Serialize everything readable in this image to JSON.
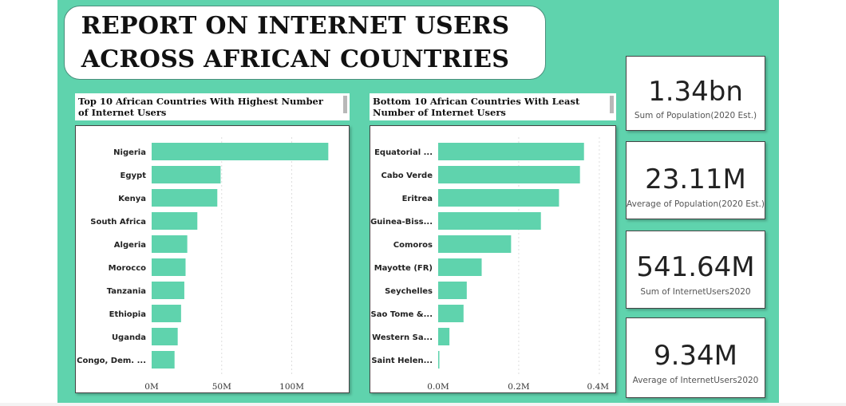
{
  "title": "REPORT ON INTERNET USERS\nACROSS AFRICAN COUNTRIES",
  "kpis": [
    {
      "value": "1.34bn",
      "label": "Sum of Population(2020 Est.)"
    },
    {
      "value": "23.11M",
      "label": "Average of Population(2020 Est.)"
    },
    {
      "value": "541.64M",
      "label": "Sum of InternetUsers2020"
    },
    {
      "value": "9.34M",
      "label": "Average of InternetUsers2020"
    }
  ],
  "colors": {
    "bar": "#5fd3ad",
    "background": "#5fd3ad"
  },
  "chart_data": [
    {
      "type": "bar",
      "orientation": "horizontal",
      "title": "Top 10 African Countries With Highest Number of Internet Users",
      "categories": [
        "Nigeria",
        "Egypt",
        "Kenya",
        "South Africa",
        "Algeria",
        "Morocco",
        "Tanzania",
        "Ethiopia",
        "Uganda",
        "Congo, Dem. ..."
      ],
      "values": [
        126.08,
        49.23,
        46.87,
        32.62,
        25.43,
        24.21,
        23.32,
        21.0,
        18.6,
        16.35
      ],
      "x_ticks": [
        0,
        50,
        100
      ],
      "x_tick_labels": [
        "0M",
        "50M",
        "100M"
      ],
      "xlim": [
        0,
        135
      ],
      "grid": true
    },
    {
      "type": "bar",
      "orientation": "horizontal",
      "title": "Bottom 10 African Countries With Least Number of Internet Users",
      "categories": [
        "Equatorial ...",
        "Cabo Verde",
        "Eritrea",
        "Guinea-Biss...",
        "Comoros",
        "Mayotte (FR)",
        "Seychelles",
        "Sao Tome &...",
        "Western Sa...",
        "Saint Helen..."
      ],
      "values": [
        0.362,
        0.352,
        0.3,
        0.255,
        0.181,
        0.108,
        0.071,
        0.063,
        0.028,
        0.003
      ],
      "x_ticks": [
        0,
        0.2,
        0.4
      ],
      "x_tick_labels": [
        "0.0M",
        "0.2M",
        "0.4M"
      ],
      "xlim": [
        0,
        0.42
      ],
      "grid": true
    }
  ]
}
